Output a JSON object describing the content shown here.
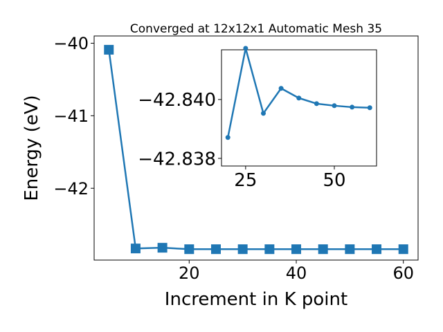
{
  "chart_data": [
    {
      "type": "line",
      "title": "Converged at 12x12x1 Automatic Mesh 35",
      "xlabel": "Increment in K point",
      "ylabel": "Energy (eV)",
      "x": [
        5,
        10,
        15,
        20,
        25,
        30,
        35,
        40,
        45,
        50,
        55,
        60
      ],
      "values": [
        -40.09,
        -42.83,
        -42.82,
        -42.84,
        -42.84,
        -42.84,
        -42.84,
        -42.84,
        -42.84,
        -42.84,
        -42.84,
        -42.84
      ],
      "color": "#1f77b4",
      "marker": "square",
      "xlim": [
        2.25,
        62.75
      ],
      "ylim": [
        -42.99,
        -39.9
      ],
      "xticks": [
        20,
        40,
        60
      ],
      "yticks": [
        {
          "value": -42,
          "label": "−42"
        },
        {
          "value": -41,
          "label": "−41"
        },
        {
          "value": -40,
          "label": "−40"
        }
      ]
    },
    {
      "type": "line",
      "x": [
        20,
        25,
        30,
        35,
        40,
        45,
        50,
        55,
        60
      ],
      "values": [
        -42.83871,
        -42.84174,
        -42.83953,
        -42.84038,
        -42.84005,
        -42.83986,
        -42.83979,
        -42.83974,
        -42.83972
      ],
      "color": "#1f77b4",
      "marker": "circle",
      "xlim": [
        18.2,
        61.9
      ],
      "ylim": [
        -42.83774,
        -42.84169
      ],
      "xticks": [
        25,
        50
      ],
      "yticks": [
        {
          "value": -42.838,
          "label": "−42.838"
        },
        {
          "value": -42.84,
          "label": "−42.840"
        }
      ]
    }
  ]
}
